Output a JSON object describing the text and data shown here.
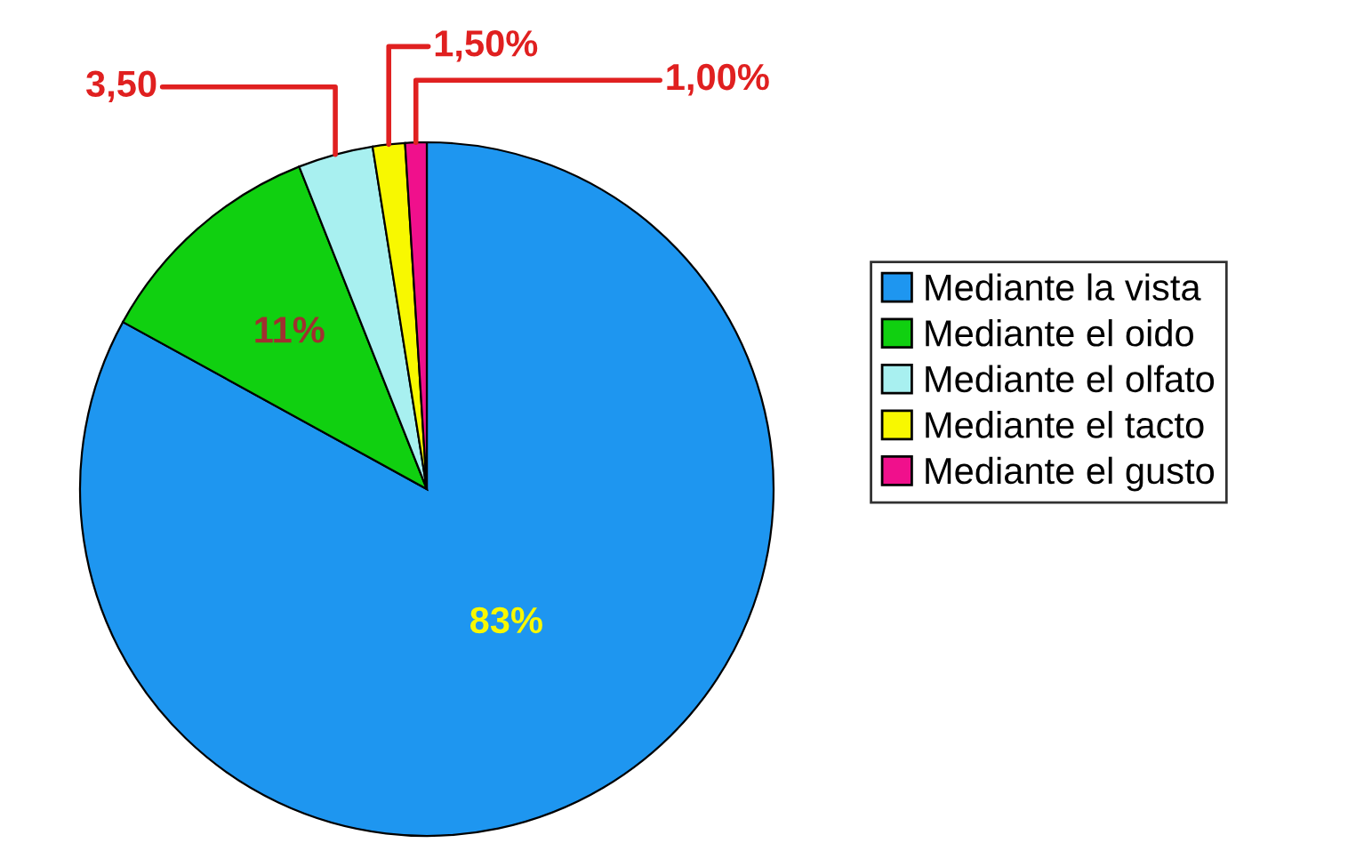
{
  "chart_data": {
    "type": "pie",
    "categories": [
      "Mediante la vista",
      "Mediante el oido",
      "Mediante el olfato",
      "Mediante el tacto",
      "Mediante el gusto"
    ],
    "values": [
      83,
      11,
      3.5,
      1.5,
      1.0
    ],
    "colors": [
      "#1e96f0",
      "#10d010",
      "#a8f0f0",
      "#f8f800",
      "#f0108c"
    ],
    "value_labels": [
      "83%",
      "11%",
      "3,50",
      "1,50%",
      "1,00%"
    ],
    "legend": "right"
  }
}
